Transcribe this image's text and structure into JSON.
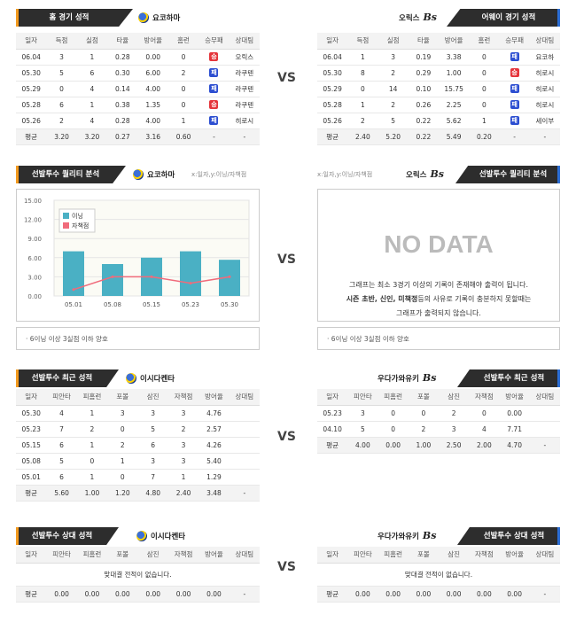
{
  "vs": "VS",
  "icons": {
    "yokohama_logo": "yokohama-logo",
    "orix_logo": "orix-logo",
    "win_result": "win-badge",
    "lose_result": "lose-badge"
  },
  "colors": {
    "win": "#e5353b",
    "lose": "#2c4ed1",
    "home_accent": "#f39a1e",
    "away_accent": "#2c6ed5",
    "bar": "#4ab0c4",
    "line": "#f06b7b"
  },
  "home_games": {
    "header": "홈 경기 성적",
    "team": "요코하마",
    "columns": [
      "일자",
      "득점",
      "실점",
      "타율",
      "방어율",
      "홈런",
      "승무패",
      "상대팀"
    ],
    "rows": [
      [
        "06.04",
        "3",
        "1",
        "0.28",
        "0.00",
        "0",
        "승",
        "오릭스"
      ],
      [
        "05.30",
        "5",
        "6",
        "0.30",
        "6.00",
        "2",
        "패",
        "라쿠텐"
      ],
      [
        "05.29",
        "0",
        "4",
        "0.14",
        "4.00",
        "0",
        "패",
        "라쿠텐"
      ],
      [
        "05.28",
        "6",
        "1",
        "0.38",
        "1.35",
        "0",
        "승",
        "라쿠텐"
      ],
      [
        "05.26",
        "2",
        "4",
        "0.28",
        "4.00",
        "1",
        "패",
        "히로시"
      ]
    ],
    "avg": [
      "평균",
      "3.20",
      "3.20",
      "0.27",
      "3.16",
      "0.60",
      "-",
      "-"
    ]
  },
  "away_games": {
    "header": "어웨이 경기 성적",
    "team": "오릭스",
    "columns": [
      "일자",
      "득점",
      "실점",
      "타율",
      "방어율",
      "홈런",
      "승무패",
      "상대팀"
    ],
    "rows": [
      [
        "06.04",
        "1",
        "3",
        "0.19",
        "3.38",
        "0",
        "패",
        "요코하"
      ],
      [
        "05.30",
        "8",
        "2",
        "0.29",
        "1.00",
        "0",
        "승",
        "히로시"
      ],
      [
        "05.29",
        "0",
        "14",
        "0.10",
        "15.75",
        "0",
        "패",
        "히로시"
      ],
      [
        "05.28",
        "1",
        "2",
        "0.26",
        "2.25",
        "0",
        "패",
        "히로시"
      ],
      [
        "05.26",
        "2",
        "5",
        "0.22",
        "5.62",
        "1",
        "패",
        "세이부"
      ]
    ],
    "avg": [
      "평균",
      "2.40",
      "5.20",
      "0.22",
      "5.49",
      "0.20",
      "-",
      "-"
    ]
  },
  "quality_home": {
    "header": "선발투수 퀄리티 분석",
    "team": "요코하마",
    "sub": "x:일자,y:이닝/자책점",
    "note": "· 6이닝 이상 3실점 이하 양호"
  },
  "quality_away": {
    "header": "선발투수 퀄리티 분석",
    "team": "오릭스",
    "sub": "x:일자,y:이닝/자책점",
    "nodata_title": "NO DATA",
    "msg1": "그래프는 최소 3경기 이상의 기록이 존재해야 출력이 됩니다.",
    "msg2_bold": "시즌 초반, 신인, 미책정",
    "msg2_rest": "등의 사유로 기록이 충분하지 못할때는",
    "msg3": "그래프가 출력되지 않습니다.",
    "note": "· 6이닝 이상 3실점 이하 양호"
  },
  "chart_data": {
    "type": "bar",
    "categories": [
      "05.01",
      "05.08",
      "05.15",
      "05.23",
      "05.30"
    ],
    "series": [
      {
        "name": "이닝",
        "type": "bar",
        "values": [
          7,
          5,
          6,
          7,
          5.67
        ]
      },
      {
        "name": "자책점",
        "type": "line",
        "values": [
          1,
          3,
          3,
          2,
          3
        ]
      }
    ],
    "yticks": [
      "15.00",
      "12.00",
      "9.00",
      "6.00",
      "3.00",
      "0.00"
    ],
    "ylim": [
      0,
      15
    ],
    "legend": "top-left",
    "grid": true
  },
  "pitcher_recent_home": {
    "header": "선발투수 최근 성적",
    "team": "이시다켄타",
    "columns": [
      "일자",
      "피안타",
      "피홈런",
      "포볼",
      "삼진",
      "자책점",
      "방어율",
      "상대팀"
    ],
    "rows": [
      [
        "05.30",
        "4",
        "1",
        "3",
        "3",
        "3",
        "4.76",
        ""
      ],
      [
        "05.23",
        "7",
        "2",
        "0",
        "5",
        "2",
        "2.57",
        ""
      ],
      [
        "05.15",
        "6",
        "1",
        "2",
        "6",
        "3",
        "4.26",
        ""
      ],
      [
        "05.08",
        "5",
        "0",
        "1",
        "3",
        "3",
        "5.40",
        ""
      ],
      [
        "05.01",
        "6",
        "1",
        "0",
        "7",
        "1",
        "1.29",
        ""
      ]
    ],
    "avg": [
      "평균",
      "5.60",
      "1.00",
      "1.20",
      "4.80",
      "2.40",
      "3.48",
      "-"
    ]
  },
  "pitcher_recent_away": {
    "header": "선발투수 최근 성적",
    "team": "우다가와유키",
    "columns": [
      "일자",
      "피안타",
      "피홈런",
      "포볼",
      "삼진",
      "자책점",
      "방어율",
      "상대팀"
    ],
    "rows": [
      [
        "05.23",
        "3",
        "0",
        "0",
        "2",
        "0",
        "0.00",
        ""
      ],
      [
        "04.10",
        "5",
        "0",
        "2",
        "3",
        "4",
        "7.71",
        ""
      ]
    ],
    "avg": [
      "평균",
      "4.00",
      "0.00",
      "1.00",
      "2.50",
      "2.00",
      "4.70",
      "-"
    ]
  },
  "pitcher_vs_home": {
    "header": "선발투수 상대 성적",
    "team": "이시다켄타",
    "columns": [
      "일자",
      "피안타",
      "피홈런",
      "포볼",
      "삼진",
      "자책점",
      "방어율",
      "상대팀"
    ],
    "empty": "맞대결 전적이 없습니다.",
    "avg": [
      "평균",
      "0.00",
      "0.00",
      "0.00",
      "0.00",
      "0.00",
      "0.00",
      "-"
    ]
  },
  "pitcher_vs_away": {
    "header": "선발투수 상대 성적",
    "team": "우다가와유키",
    "columns": [
      "일자",
      "피안타",
      "피홈런",
      "포볼",
      "삼진",
      "자책점",
      "방어율",
      "상대팀"
    ],
    "empty": "맞대결 전적이 없습니다.",
    "avg": [
      "평균",
      "0.00",
      "0.00",
      "0.00",
      "0.00",
      "0.00",
      "0.00",
      "-"
    ]
  }
}
